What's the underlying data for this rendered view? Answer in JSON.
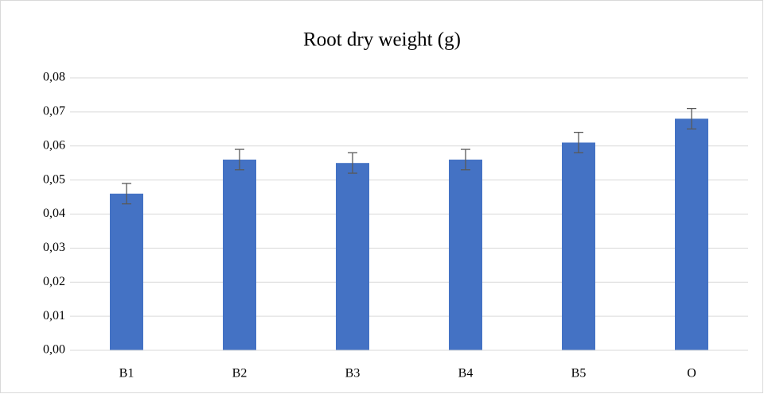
{
  "chart_data": {
    "type": "bar",
    "title": "Root dry weight (g)",
    "categories": [
      "B1",
      "B2",
      "B3",
      "B4",
      "B5",
      "O"
    ],
    "values": [
      0.046,
      0.056,
      0.055,
      0.056,
      0.061,
      0.068
    ],
    "errors": [
      0.003,
      0.003,
      0.003,
      0.003,
      0.003,
      0.003
    ],
    "color": "#4472c4",
    "error_color": "#595959",
    "ylim": [
      0,
      0.08
    ],
    "yticks": [
      {
        "value": 0,
        "label": "0,00"
      },
      {
        "value": 0.01,
        "label": "0,01"
      },
      {
        "value": 0.02,
        "label": "0,02"
      },
      {
        "value": 0.03,
        "label": "0,03"
      },
      {
        "value": 0.04,
        "label": "0,04"
      },
      {
        "value": 0.05,
        "label": "0,05"
      },
      {
        "value": 0.06,
        "label": "0,06"
      },
      {
        "value": 0.07,
        "label": "0,07"
      },
      {
        "value": 0.08,
        "label": "0,08"
      }
    ],
    "grid": true
  }
}
